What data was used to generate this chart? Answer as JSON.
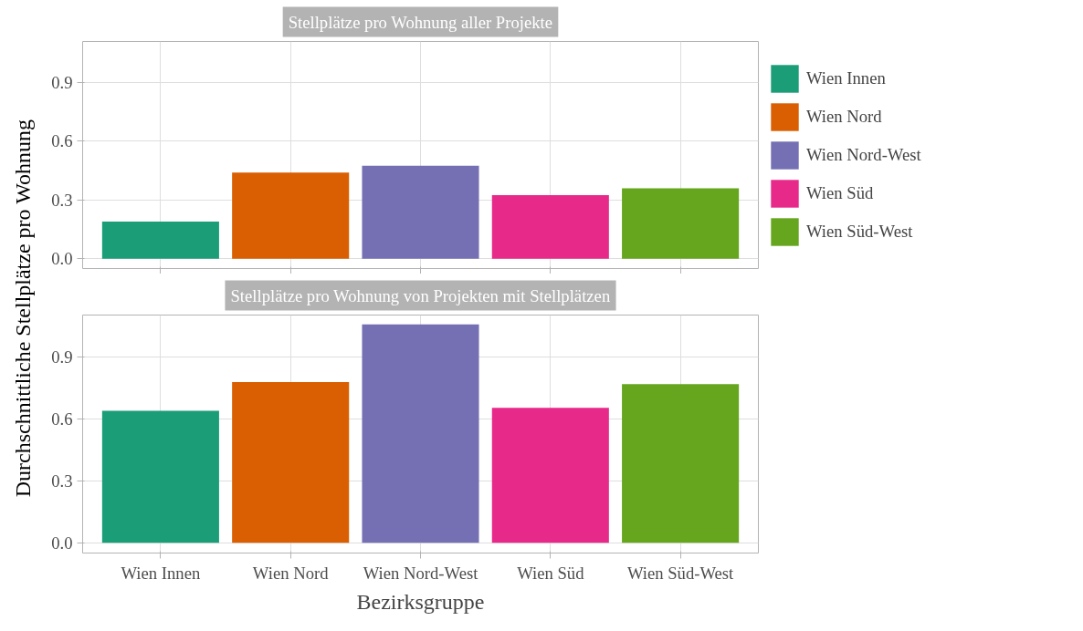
{
  "chart_data": [
    {
      "type": "bar",
      "title": "Stellplätze pro Wohnung aller Projekte",
      "ylabel": "Durchschnittliche Stellplätze pro Wohnung",
      "categories": [
        null,
        null,
        null,
        null,
        null
      ],
      "series": [
        {
          "name": "Wien Innen",
          "color": "#1b9e77",
          "values": [
            0.19,
            null,
            null,
            null,
            null
          ]
        },
        {
          "name": "Wien Nord",
          "color": "#d95f02",
          "values": [
            null,
            0.44,
            null,
            null,
            null
          ]
        },
        {
          "name": "Wien Nord-West",
          "color": "#7570b3",
          "values": [
            null,
            null,
            0.475,
            null,
            null
          ]
        },
        {
          "name": "Wien Süd",
          "color": "#e7298a",
          "values": [
            null,
            null,
            null,
            0.325,
            null
          ]
        },
        {
          "name": "Wien Süd-West",
          "color": "#66a61e",
          "values": [
            null,
            null,
            null,
            null,
            0.36
          ]
        }
      ],
      "ylim": [
        -0.05,
        1.11
      ],
      "yticks": [
        {
          "value": 0.0,
          "label": "0.0"
        },
        0.3,
        0.6,
        0.9
      ],
      "tick_labels": "y",
      "grid": true,
      "legend": "right"
    },
    {
      "type": "bar",
      "title": "Stellplätze pro Wohnung von Projekten mit Stellplätzen",
      "xlabel": "Bezirksgruppe",
      "categories": [
        "Wien Innen",
        "Wien Nord",
        "Wien Nord-West",
        "Wien Süd",
        "Wien Süd-West"
      ],
      "series": [
        {
          "color": "#1b9e77",
          "values": [
            0.64,
            null,
            null,
            null,
            null
          ]
        },
        {
          "color": "#d95f02",
          "values": [
            null,
            0.78,
            null,
            null,
            null
          ]
        },
        {
          "color": "#7570b3",
          "values": [
            null,
            null,
            1.06,
            null,
            null
          ]
        },
        {
          "color": "#e7298a",
          "values": [
            null,
            null,
            null,
            0.655,
            null
          ]
        },
        {
          "color": "#66a61e",
          "values": [
            null,
            null,
            null,
            null,
            0.77
          ]
        }
      ],
      "ylim": [
        -0.05,
        1.105
      ],
      "yticks": [
        {
          "value": 0.0,
          "label": "0.0"
        },
        0.3,
        0.6,
        0.9
      ],
      "grid": true
    }
  ]
}
